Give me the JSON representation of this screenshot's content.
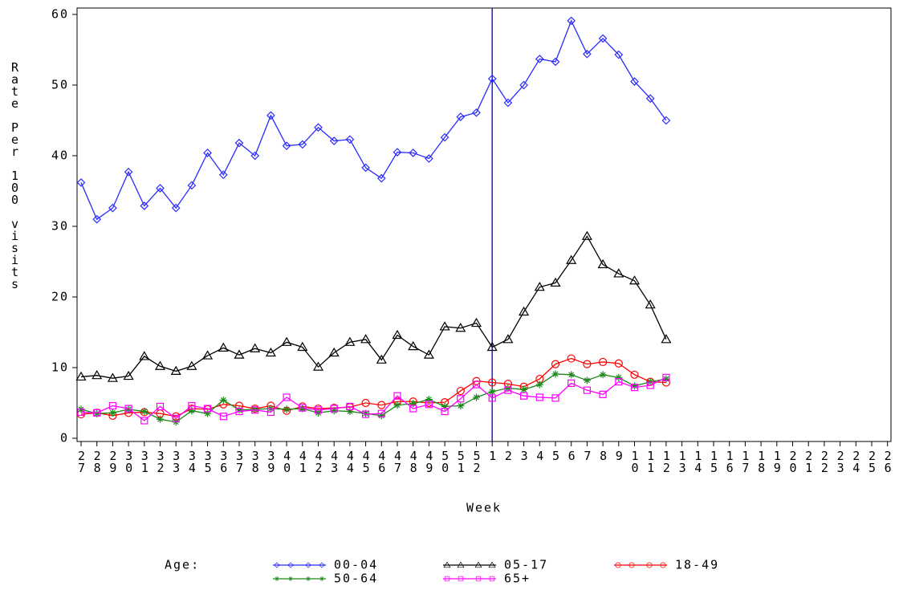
{
  "chart_data": {
    "type": "line",
    "x_label": "Week",
    "y_label": "Rate Per 100 visits",
    "legend_title": "Age:",
    "categories": [
      "27",
      "28",
      "29",
      "30",
      "31",
      "32",
      "33",
      "34",
      "35",
      "36",
      "37",
      "38",
      "39",
      "40",
      "41",
      "42",
      "43",
      "44",
      "45",
      "46",
      "47",
      "48",
      "49",
      "50",
      "51",
      "52",
      "1",
      "2",
      "3",
      "4",
      "5",
      "6",
      "7",
      "8",
      "9",
      "10",
      "11",
      "12",
      "13",
      "14",
      "15",
      "16",
      "17",
      "18",
      "19",
      "20",
      "21",
      "22",
      "23",
      "24",
      "25",
      "26"
    ],
    "ylim": [
      0,
      60
    ],
    "yticks": [
      0,
      10,
      20,
      30,
      40,
      50,
      60
    ],
    "reference_line": {
      "x": "1",
      "color": "#2020d0"
    },
    "series": [
      {
        "name": "00-04",
        "color": "#2a2aff",
        "marker": "diamond",
        "values": [
          36.2,
          31,
          32.6,
          37.7,
          32.9,
          35.4,
          32.6,
          35.8,
          40.4,
          37.3,
          41.8,
          40,
          45.7,
          41.4,
          41.6,
          44,
          42.1,
          42.3,
          38.3,
          36.8,
          40.5,
          40.4,
          39.6,
          42.6,
          45.5,
          46.1,
          50.9,
          47.5,
          50,
          53.7,
          53.3,
          59.1,
          54.4,
          56.6,
          54.3,
          50.5,
          48.1,
          45,
          null,
          null,
          null,
          null,
          null,
          null,
          null,
          null,
          null,
          null,
          null,
          null,
          null,
          null
        ]
      },
      {
        "name": "05-17",
        "color": "#000000",
        "marker": "triangle",
        "values": [
          8.7,
          8.9,
          8.5,
          8.8,
          11.6,
          10.2,
          9.5,
          10.2,
          11.7,
          12.8,
          11.8,
          12.7,
          12.1,
          13.6,
          12.9,
          10.1,
          12.1,
          13.6,
          14,
          11.1,
          14.6,
          13,
          11.8,
          15.8,
          15.6,
          16.3,
          12.9,
          14,
          17.9,
          21.4,
          22,
          25.2,
          28.6,
          24.6,
          23.3,
          22.3,
          18.9,
          14,
          null,
          null,
          null,
          null,
          null,
          null,
          null,
          null,
          null,
          null,
          null,
          null,
          null,
          null
        ]
      },
      {
        "name": "18-49",
        "color": "#ff0000",
        "marker": "circle",
        "values": [
          3.4,
          3.6,
          3.2,
          3.6,
          3.7,
          3.5,
          3.1,
          4.2,
          4.1,
          4.8,
          4.6,
          4.2,
          4.6,
          3.9,
          4.5,
          4.2,
          4.3,
          4.4,
          5,
          4.7,
          5.2,
          5.2,
          5,
          5.1,
          6.7,
          8.1,
          7.9,
          7.7,
          7.3,
          8.4,
          10.5,
          11.3,
          10.5,
          10.8,
          10.6,
          9,
          8,
          7.9,
          null,
          null,
          null,
          null,
          null,
          null,
          null,
          null,
          null,
          null,
          null,
          null,
          null,
          null
        ]
      },
      {
        "name": "50-64",
        "color": "#1a8a1a",
        "marker": "star",
        "values": [
          4.1,
          3.5,
          3.6,
          4.1,
          3.8,
          2.7,
          2.3,
          3.9,
          3.5,
          5.4,
          4,
          4.1,
          4.2,
          4.1,
          4.2,
          3.6,
          3.9,
          3.8,
          3.5,
          3.2,
          4.7,
          4.9,
          5.5,
          4.5,
          4.6,
          5.8,
          6.6,
          7.1,
          6.9,
          7.6,
          9.1,
          9,
          8.2,
          9,
          8.6,
          7.4,
          8,
          8.4,
          null,
          null,
          null,
          null,
          null,
          null,
          null,
          null,
          null,
          null,
          null,
          null,
          null,
          null
        ]
      },
      {
        "name": "65+",
        "color": "#ff00ff",
        "marker": "square",
        "values": [
          3.7,
          3.6,
          4.6,
          4.2,
          2.5,
          4.5,
          2.8,
          4.6,
          4.2,
          3.1,
          3.8,
          4,
          3.7,
          5.8,
          4.3,
          4,
          4.2,
          4.5,
          3.4,
          3.5,
          6,
          4.2,
          4.8,
          3.8,
          5.6,
          7.6,
          5.7,
          6.8,
          6,
          5.8,
          5.7,
          7.8,
          6.8,
          6.2,
          8,
          7.2,
          7.5,
          8.6,
          null,
          null,
          null,
          null,
          null,
          null,
          null,
          null,
          null,
          null,
          null,
          null,
          null,
          null
        ]
      }
    ]
  }
}
